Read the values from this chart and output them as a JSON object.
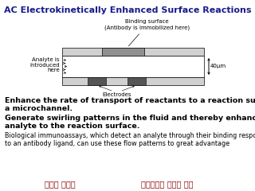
{
  "title": "AC Electrokinetically Enhanced Surface Reactions",
  "title_color": "#1a1a8c",
  "title_fontsize": 8.0,
  "binding_label": "Binding surface\n(Antibody is immobilized here)",
  "electrodes_label": "Electrodes",
  "analyte_label": "Analyte is\nintroduced\nhere",
  "dim_label": "40μm",
  "top_wall_color": "#d0d0d0",
  "top_binding_color": "#909090",
  "bottom_wall_color": "#d0d0d0",
  "electrode_color": "#555555",
  "channel_interior": "#ffffff",
  "text1": "Enhance the rate of transport of reactants to a reaction surface on the wall of\na microchannel.",
  "text2": "Generate swirling patterns in the fluid and thereby enhance the transport of th\nanalyte to the reaction surface.",
  "text3": "Biological immunoassays, which detect an analyte through their binding response\nto an antibody ligand, can use these flow patterns to great advantage",
  "footer_left": "學生： 鄭宜防",
  "footer_right": "授課老師： 李旺龍 教授",
  "footer_color": "#8b0000",
  "footer_fontsize": 7.0,
  "body_fontsize1": 6.8,
  "body_fontsize2": 6.8,
  "body_fontsize3": 5.8,
  "label_fontsize": 5.0
}
